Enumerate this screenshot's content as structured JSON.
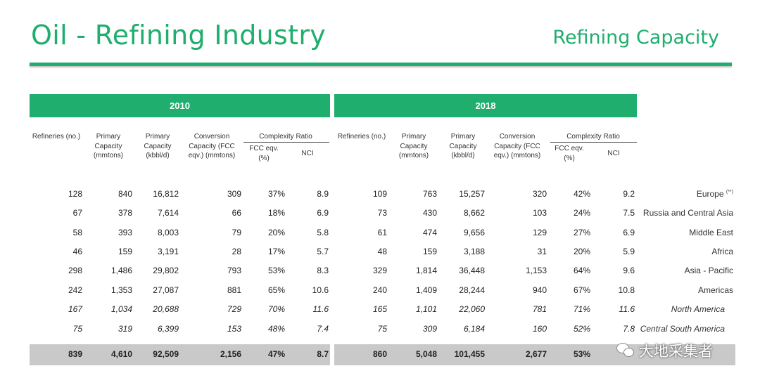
{
  "header": {
    "title": "Oil - Refining Industry",
    "subtitle": "Refining Capacity"
  },
  "years": [
    "2010",
    "2018"
  ],
  "columns": {
    "refineries": "Refineries (no.)",
    "primary_mmt": "Primary Capacity (mmtons)",
    "primary_kbbl": "Primary Capacity (kbbl/d)",
    "conversion": "Conversion Capacity (FCC eqv.) (mmtons)",
    "complexity": "Complexity Ratio",
    "fcc": "FCC eqv. (%)",
    "nci": "NCI"
  },
  "rows": [
    {
      "r1": "128",
      "p1": "840",
      "k1": "16,812",
      "c1": "309",
      "f1": "37%",
      "n1": "8.9",
      "r2": "109",
      "p2": "763",
      "k2": "15,257",
      "c2": "320",
      "f2": "42%",
      "n2": "9.2",
      "region": "Europe",
      "sup": "(**)"
    },
    {
      "r1": "67",
      "p1": "378",
      "k1": "7,614",
      "c1": "66",
      "f1": "18%",
      "n1": "6.9",
      "r2": "73",
      "p2": "430",
      "k2": "8,662",
      "c2": "103",
      "f2": "24%",
      "n2": "7.5",
      "region": "Russia and Central Asia"
    },
    {
      "r1": "58",
      "p1": "393",
      "k1": "8,003",
      "c1": "79",
      "f1": "20%",
      "n1": "5.8",
      "r2": "61",
      "p2": "474",
      "k2": "9,656",
      "c2": "129",
      "f2": "27%",
      "n2": "6.9",
      "region": "Middle East"
    },
    {
      "r1": "46",
      "p1": "159",
      "k1": "3,191",
      "c1": "28",
      "f1": "17%",
      "n1": "5.7",
      "r2": "48",
      "p2": "159",
      "k2": "3,188",
      "c2": "31",
      "f2": "20%",
      "n2": "5.9",
      "region": "Africa"
    },
    {
      "r1": "298",
      "p1": "1,486",
      "k1": "29,802",
      "c1": "793",
      "f1": "53%",
      "n1": "8.3",
      "r2": "329",
      "p2": "1,814",
      "k2": "36,448",
      "c2": "1,153",
      "f2": "64%",
      "n2": "9.6",
      "region": "Asia - Pacific"
    },
    {
      "r1": "242",
      "p1": "1,353",
      "k1": "27,087",
      "c1": "881",
      "f1": "65%",
      "n1": "10.6",
      "r2": "240",
      "p2": "1,409",
      "k2": "28,244",
      "c2": "940",
      "f2": "67%",
      "n2": "10.8",
      "region": "Americas"
    },
    {
      "r1": "167",
      "p1": "1,034",
      "k1": "20,688",
      "c1": "729",
      "f1": "70%",
      "n1": "11.6",
      "r2": "165",
      "p2": "1,101",
      "k2": "22,060",
      "c2": "781",
      "f2": "71%",
      "n2": "11.6",
      "region": "North America"
    },
    {
      "r1": "75",
      "p1": "319",
      "k1": "6,399",
      "c1": "153",
      "f1": "48%",
      "n1": "7.4",
      "r2": "75",
      "p2": "309",
      "k2": "6,184",
      "c2": "160",
      "f2": "52%",
      "n2": "7.8",
      "region": "Central South America"
    }
  ],
  "total": {
    "r1": "839",
    "p1": "4,610",
    "k1": "92,509",
    "c1": "2,156",
    "f1": "47%",
    "n1": "8.7",
    "r2": "860",
    "p2": "5,048",
    "k2": "101,455",
    "c2": "2,677",
    "f2": "53%"
  },
  "watermark": "大地采集者",
  "colors": {
    "accent": "#1fae6e",
    "total_band": "#c9c9c9"
  }
}
